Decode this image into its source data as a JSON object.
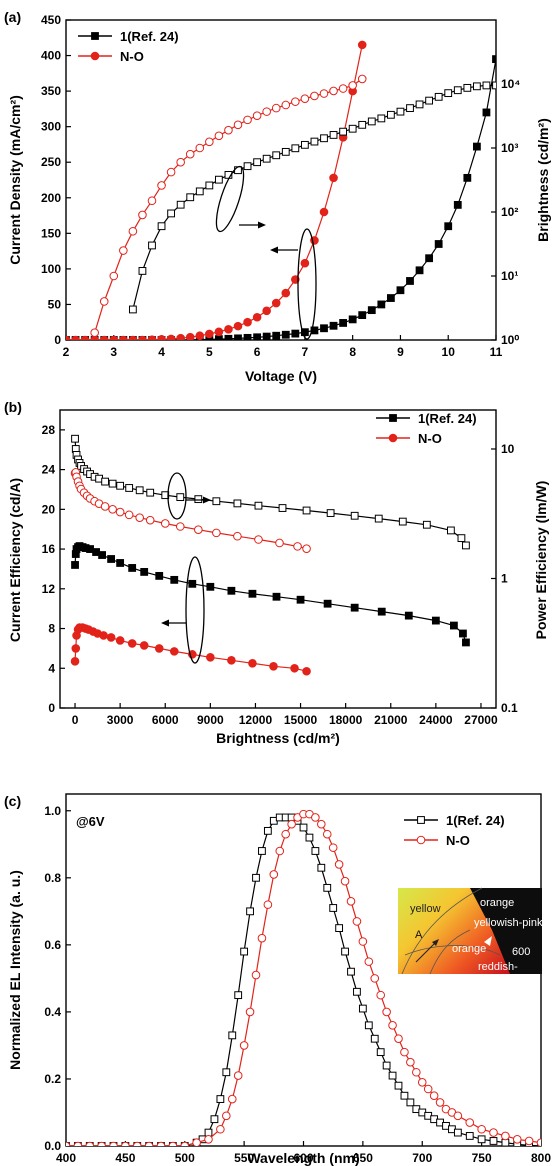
{
  "colors": {
    "black": "#000000",
    "red": "#e2231a"
  },
  "chart_data": [
    {
      "panel": "(a)",
      "type": "line",
      "xlabel": "Voltage (V)",
      "ylabel": "Current Density (mA/cm²)",
      "ylabel_right": "Brightness (cd/m²)",
      "xlim": [
        2,
        11
      ],
      "ylim": [
        0,
        450
      ],
      "ylim_right": [
        1,
        100000
      ],
      "right_scale": "log",
      "x_ticks": [
        "2",
        "3",
        "4",
        "5",
        "6",
        "7",
        "8",
        "9",
        "10",
        "11"
      ],
      "y_ticks": [
        "0",
        "50",
        "100",
        "150",
        "200",
        "250",
        "300",
        "350",
        "400",
        "450"
      ],
      "y_right_ticks": [
        "10⁰",
        "10¹",
        "10²",
        "10³",
        "10⁴"
      ],
      "legend_position": "top-left",
      "legend": [
        "1(Ref. 24)",
        "N-O"
      ],
      "series": [
        {
          "name": "1(Ref. 24)",
          "quantity": "current density",
          "axis": "left",
          "marker": "filled-square",
          "color": "#000000",
          "x": [
            2,
            2.2,
            2.4,
            2.6,
            2.8,
            3,
            3.2,
            3.4,
            3.6,
            3.8,
            4,
            4.2,
            4.4,
            4.6,
            4.8,
            5,
            5.2,
            5.4,
            5.6,
            5.8,
            6,
            6.2,
            6.4,
            6.6,
            6.8,
            7,
            7.2,
            7.4,
            7.6,
            7.8,
            8,
            8.2,
            8.4,
            8.6,
            8.8,
            9,
            9.2,
            9.4,
            9.6,
            9.8,
            10,
            10.2,
            10.4,
            10.6,
            10.8,
            11
          ],
          "y": [
            0,
            0,
            0,
            0,
            0,
            0,
            0,
            0,
            0,
            0,
            0,
            0,
            0,
            0,
            0.5,
            0.8,
            1.2,
            1.7,
            2.3,
            3,
            3.8,
            4.8,
            6,
            7.4,
            9,
            11,
            13.5,
            16.5,
            20,
            24,
            29,
            35,
            42,
            50,
            59,
            70,
            83,
            98,
            115,
            135,
            160,
            190,
            228,
            272,
            320,
            395
          ]
        },
        {
          "name": "N-O",
          "quantity": "current density",
          "axis": "left",
          "marker": "filled-circle",
          "color": "#e2231a",
          "x": [
            2,
            2.2,
            2.4,
            2.6,
            2.8,
            3,
            3.2,
            3.4,
            3.6,
            3.8,
            4,
            4.2,
            4.4,
            4.6,
            4.8,
            5,
            5.2,
            5.4,
            5.6,
            5.8,
            6,
            6.2,
            6.4,
            6.6,
            6.8,
            7,
            7.2,
            7.4,
            7.6,
            7.8,
            8,
            8.2
          ],
          "y": [
            0,
            0,
            0,
            0,
            0,
            0,
            0,
            0,
            0,
            0.5,
            1,
            1.5,
            2.5,
            4,
            6,
            8.5,
            11.5,
            15,
            19.5,
            25,
            32,
            41,
            52,
            66,
            85,
            108,
            140,
            180,
            228,
            285,
            350,
            415
          ]
        },
        {
          "name": "1(Ref. 24)",
          "quantity": "brightness",
          "axis": "right",
          "marker": "open-square",
          "color": "#000000",
          "x": [
            3.4,
            3.6,
            3.8,
            4,
            4.2,
            4.4,
            4.6,
            4.8,
            5,
            5.2,
            5.4,
            5.6,
            5.8,
            6,
            6.2,
            6.4,
            6.6,
            6.8,
            7,
            7.2,
            7.4,
            7.6,
            7.8,
            8,
            8.2,
            8.4,
            8.6,
            8.8,
            9,
            9.2,
            9.4,
            9.6,
            9.8,
            10,
            10.2,
            10.4,
            10.6,
            10.8,
            11
          ],
          "y": [
            3,
            12,
            30,
            60,
            95,
            130,
            170,
            210,
            260,
            320,
            380,
            450,
            520,
            600,
            680,
            770,
            870,
            990,
            1120,
            1260,
            1420,
            1600,
            1800,
            2000,
            2300,
            2600,
            2900,
            3300,
            3700,
            4200,
            4800,
            5500,
            6300,
            7200,
            8000,
            8700,
            9200,
            9500,
            9500
          ]
        },
        {
          "name": "N-O",
          "quantity": "brightness",
          "axis": "right",
          "marker": "open-circle",
          "color": "#e2231a",
          "x": [
            2.6,
            2.8,
            3,
            3.2,
            3.4,
            3.6,
            3.8,
            4,
            4.2,
            4.4,
            4.6,
            4.8,
            5,
            5.2,
            5.4,
            5.6,
            5.8,
            6,
            6.2,
            6.4,
            6.6,
            6.8,
            7,
            7.2,
            7.4,
            7.6,
            7.8,
            8,
            8.2
          ],
          "y": [
            1.3,
            4,
            10,
            25,
            50,
            90,
            150,
            260,
            420,
            600,
            800,
            1000,
            1250,
            1550,
            1900,
            2300,
            2750,
            3200,
            3700,
            4200,
            4700,
            5300,
            5900,
            6500,
            7100,
            7800,
            8500,
            9500,
            12000
          ]
        }
      ]
    },
    {
      "panel": "(b)",
      "type": "line",
      "xlabel": "Brightness (cd/m²)",
      "ylabel": "Current Efficiency (cd/A)",
      "ylabel_right": "Power Efficiency (lm/W)",
      "xlim": [
        -1000,
        28000
      ],
      "ylim": [
        0,
        30
      ],
      "ylim_right": [
        0.1,
        20
      ],
      "right_scale": "log",
      "x_ticks": [
        "0",
        "3000",
        "6000",
        "9000",
        "12000",
        "15000",
        "18000",
        "21000",
        "24000",
        "27000"
      ],
      "y_ticks": [
        "0",
        "4",
        "8",
        "12",
        "16",
        "20",
        "24",
        "28"
      ],
      "y_right_ticks": [
        "0.1",
        "1",
        "10"
      ],
      "legend_position": "top-right",
      "legend": [
        "1(Ref. 24)",
        "N-O"
      ],
      "series": [
        {
          "name": "1(Ref. 24)",
          "quantity": "current efficiency",
          "axis": "left",
          "marker": "filled-square",
          "color": "#000000",
          "x": [
            0,
            50,
            100,
            200,
            300,
            500,
            700,
            1000,
            1400,
            1800,
            2400,
            3000,
            3800,
            4600,
            5600,
            6600,
            7800,
            9000,
            10400,
            11800,
            13400,
            15000,
            16800,
            18600,
            20400,
            22200,
            24000,
            25200,
            25800,
            26000
          ],
          "y": [
            14.4,
            15.5,
            16,
            16.2,
            16.3,
            16.2,
            16.1,
            16,
            15.7,
            15.4,
            15,
            14.6,
            14.1,
            13.7,
            13.3,
            12.9,
            12.5,
            12.2,
            11.8,
            11.5,
            11.2,
            10.9,
            10.5,
            10.1,
            9.7,
            9.3,
            8.8,
            8.3,
            7.5,
            6.6
          ]
        },
        {
          "name": "N-O",
          "quantity": "current efficiency",
          "axis": "left",
          "marker": "filled-circle",
          "color": "#e2231a",
          "x": [
            0,
            50,
            100,
            200,
            300,
            500,
            700,
            900,
            1200,
            1500,
            1900,
            2400,
            3000,
            3800,
            4600,
            5600,
            6600,
            7800,
            9000,
            10400,
            11800,
            13200,
            14600,
            15400
          ],
          "y": [
            4.7,
            6,
            7.3,
            7.9,
            8.1,
            8.1,
            8,
            7.9,
            7.7,
            7.5,
            7.3,
            7.1,
            6.8,
            6.5,
            6.3,
            6,
            5.7,
            5.4,
            5.1,
            4.8,
            4.5,
            4.2,
            4,
            3.7
          ]
        },
        {
          "name": "1(Ref. 24)",
          "quantity": "power efficiency",
          "axis": "right",
          "marker": "open-square",
          "color": "#000000",
          "x": [
            0,
            50,
            100,
            200,
            300,
            400,
            600,
            800,
            1000,
            1300,
            1600,
            2000,
            2500,
            3000,
            3600,
            4300,
            5000,
            6000,
            7000,
            8200,
            9400,
            10800,
            12200,
            13800,
            15400,
            17000,
            18600,
            20200,
            21800,
            23400,
            25000,
            25700,
            26000
          ],
          "y": [
            12,
            10,
            9,
            8.3,
            7.8,
            7.4,
            7,
            6.7,
            6.4,
            6.1,
            5.9,
            5.6,
            5.4,
            5.2,
            5,
            4.8,
            4.6,
            4.4,
            4.25,
            4.1,
            3.95,
            3.8,
            3.65,
            3.5,
            3.35,
            3.2,
            3.05,
            2.9,
            2.75,
            2.6,
            2.35,
            2.05,
            1.8
          ]
        },
        {
          "name": "N-O",
          "quantity": "power efficiency",
          "axis": "right",
          "marker": "open-circle",
          "color": "#e2231a",
          "x": [
            0,
            50,
            100,
            200,
            300,
            400,
            600,
            800,
            1000,
            1300,
            1600,
            2000,
            2500,
            3000,
            3600,
            4300,
            5000,
            6000,
            7000,
            8200,
            9400,
            10800,
            12200,
            13600,
            14800,
            15400
          ],
          "y": [
            6.5,
            6.6,
            6.1,
            5.6,
            5.2,
            4.9,
            4.6,
            4.35,
            4.15,
            3.95,
            3.78,
            3.6,
            3.42,
            3.26,
            3.1,
            2.95,
            2.82,
            2.66,
            2.52,
            2.38,
            2.25,
            2.12,
            2,
            1.88,
            1.77,
            1.7
          ]
        }
      ]
    },
    {
      "panel": "(c)",
      "type": "line",
      "annotation": "@6V",
      "xlabel": "Wavelength (nm)",
      "ylabel": "Normalized EL Intensity (a. u.)",
      "xlim": [
        400,
        800
      ],
      "ylim": [
        0,
        1.05
      ],
      "x_ticks": [
        "400",
        "450",
        "500",
        "550",
        "600",
        "650",
        "700",
        "750",
        "800"
      ],
      "y_ticks": [
        "0.0",
        "0.2",
        "0.4",
        "0.6",
        "0.8",
        "1.0"
      ],
      "legend_position": "top-right",
      "legend": [
        "1(Ref. 24)",
        "N-O"
      ],
      "inset": {
        "description": "CIE chromaticity diagram detail",
        "labels": [
          "orange",
          "yellow",
          "yellowish-pink",
          "orange",
          "reddish-",
          "600",
          "A"
        ]
      },
      "series": [
        {
          "name": "1(Ref. 24)",
          "marker": "open-square",
          "color": "#000000",
          "x": [
            400,
            410,
            420,
            430,
            440,
            450,
            460,
            470,
            480,
            490,
            500,
            510,
            515,
            520,
            525,
            530,
            535,
            540,
            545,
            550,
            555,
            560,
            565,
            570,
            575,
            580,
            585,
            590,
            595,
            600,
            605,
            610,
            615,
            620,
            625,
            630,
            635,
            640,
            645,
            650,
            655,
            660,
            665,
            670,
            675,
            680,
            685,
            690,
            695,
            700,
            705,
            710,
            715,
            720,
            725,
            730,
            740,
            750,
            760,
            770,
            780,
            790,
            800
          ],
          "y": [
            0,
            0,
            0,
            0,
            0,
            0,
            0,
            0,
            0,
            0,
            0,
            0.01,
            0.02,
            0.04,
            0.08,
            0.14,
            0.22,
            0.33,
            0.45,
            0.58,
            0.7,
            0.8,
            0.88,
            0.94,
            0.97,
            0.98,
            0.98,
            0.98,
            0.97,
            0.95,
            0.92,
            0.88,
            0.83,
            0.77,
            0.71,
            0.65,
            0.58,
            0.52,
            0.46,
            0.41,
            0.36,
            0.32,
            0.28,
            0.24,
            0.21,
            0.18,
            0.15,
            0.13,
            0.11,
            0.1,
            0.09,
            0.08,
            0.07,
            0.06,
            0.05,
            0.04,
            0.03,
            0.02,
            0.015,
            0.01,
            0.005,
            0.002,
            0
          ]
        },
        {
          "name": "N-O",
          "marker": "open-circle",
          "color": "#e2231a",
          "x": [
            400,
            410,
            420,
            430,
            440,
            450,
            460,
            470,
            480,
            490,
            500,
            510,
            520,
            530,
            535,
            540,
            545,
            550,
            555,
            560,
            565,
            570,
            575,
            580,
            585,
            590,
            595,
            600,
            605,
            610,
            615,
            620,
            625,
            630,
            635,
            640,
            645,
            650,
            655,
            660,
            665,
            670,
            675,
            680,
            685,
            690,
            695,
            700,
            705,
            710,
            715,
            720,
            725,
            730,
            740,
            750,
            760,
            770,
            780,
            790,
            800
          ],
          "y": [
            0,
            0,
            0,
            0,
            0,
            0,
            0,
            0,
            0,
            0,
            0,
            0.01,
            0.02,
            0.05,
            0.09,
            0.14,
            0.21,
            0.3,
            0.4,
            0.51,
            0.62,
            0.72,
            0.81,
            0.88,
            0.93,
            0.96,
            0.98,
            0.99,
            0.99,
            0.98,
            0.96,
            0.93,
            0.89,
            0.84,
            0.79,
            0.73,
            0.67,
            0.61,
            0.55,
            0.5,
            0.45,
            0.4,
            0.36,
            0.32,
            0.28,
            0.25,
            0.22,
            0.19,
            0.17,
            0.15,
            0.13,
            0.11,
            0.1,
            0.09,
            0.07,
            0.05,
            0.04,
            0.03,
            0.02,
            0.015,
            0.01
          ]
        }
      ]
    }
  ]
}
